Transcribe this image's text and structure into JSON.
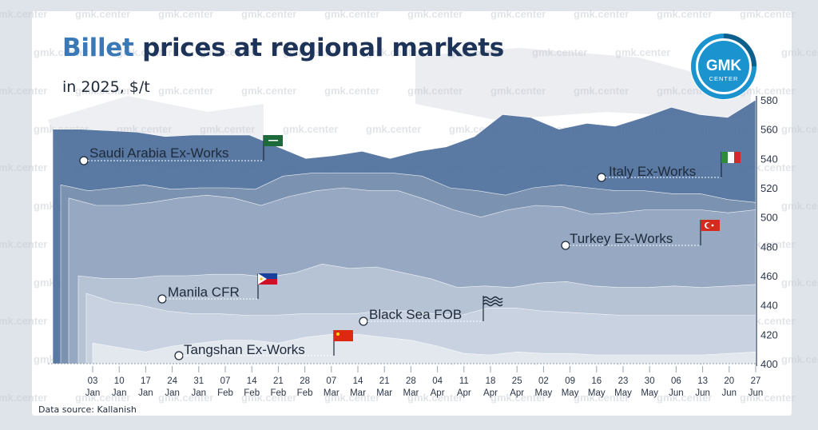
{
  "title_part1": "Billet",
  "title_part2": "prices at regional markets",
  "subtitle": "in 2025, $/t",
  "source": "Data source: Kallanish",
  "watermark": "gmk.center",
  "logo": {
    "line1": "GMK",
    "line2": "CENTER"
  },
  "colors": {
    "title_dark": "#1e3358",
    "title_accent": "#3b78b6",
    "saudi": "#4a6c9a",
    "italy": "#7f95b3",
    "turkey": "#9aabc4",
    "manila": "#b9c6d8",
    "blacksea": "#cbd4e2",
    "tangshan": "#e6eaf0"
  },
  "chart_data": {
    "type": "area",
    "title": "Billet prices at regional markets",
    "subtitle": "in 2025, $/t",
    "ylim": [
      400,
      580
    ],
    "y_ticks": [
      "400",
      "420",
      "440",
      "460",
      "480",
      "500",
      "520",
      "540",
      "560",
      "580"
    ],
    "x_day": [
      "03",
      "10",
      "17",
      "24",
      "31",
      "07",
      "14",
      "21",
      "28",
      "07",
      "14",
      "21",
      "28",
      "04",
      "11",
      "18",
      "25",
      "02",
      "09",
      "16",
      "23",
      "30",
      "06",
      "13",
      "20",
      "27"
    ],
    "x_month": [
      "Jan",
      "Jan",
      "Jan",
      "Jan",
      "Jan",
      "Feb",
      "Feb",
      "Feb",
      "Feb",
      "Mar",
      "Mar",
      "Mar",
      "Mar",
      "Apr",
      "Apr",
      "Apr",
      "Apr",
      "May",
      "May",
      "May",
      "May",
      "May",
      "Jun",
      "Jun",
      "Jun",
      "Jun"
    ],
    "series": [
      {
        "name": "Saudi Arabia Ex-Works",
        "values": [
          560,
          560,
          559,
          558,
          555,
          556,
          556,
          556,
          548,
          540,
          542,
          545,
          540,
          545,
          548,
          555,
          570,
          568,
          560,
          564,
          562,
          568,
          575,
          570,
          568,
          580
        ]
      },
      {
        "name": "Italy Ex-Works",
        "values": [
          522,
          518,
          520,
          522,
          519,
          520,
          520,
          519,
          528,
          530,
          530,
          530,
          530,
          528,
          520,
          518,
          515,
          520,
          522,
          520,
          518,
          518,
          516,
          516,
          512,
          510
        ]
      },
      {
        "name": "Turkey Ex-Works",
        "values": [
          513,
          508,
          508,
          510,
          513,
          515,
          513,
          508,
          514,
          518,
          520,
          518,
          518,
          512,
          505,
          500,
          505,
          508,
          507,
          502,
          503,
          505,
          505,
          505,
          503,
          505
        ]
      },
      {
        "name": "Manila CFR",
        "values": [
          460,
          458,
          458,
          460,
          460,
          461,
          461,
          459,
          462,
          468,
          465,
          466,
          462,
          458,
          452,
          453,
          452,
          455,
          456,
          453,
          452,
          452,
          453,
          452,
          453,
          454
        ]
      },
      {
        "name": "Black Sea FOB",
        "values": [
          448,
          442,
          440,
          436,
          434,
          434,
          433,
          433,
          434,
          434,
          434,
          436,
          436,
          434,
          433,
          438,
          438,
          436,
          435,
          434,
          433,
          433,
          433,
          433,
          433,
          433
        ]
      },
      {
        "name": "Tangshan Ex-Works",
        "values": [
          414,
          411,
          408,
          412,
          414,
          416,
          416,
          414,
          418,
          420,
          420,
          418,
          416,
          412,
          407,
          406,
          408,
          407,
          407,
          406,
          406,
          406,
          406,
          406,
          407,
          408
        ]
      }
    ],
    "legend": "inline labels with flags"
  }
}
